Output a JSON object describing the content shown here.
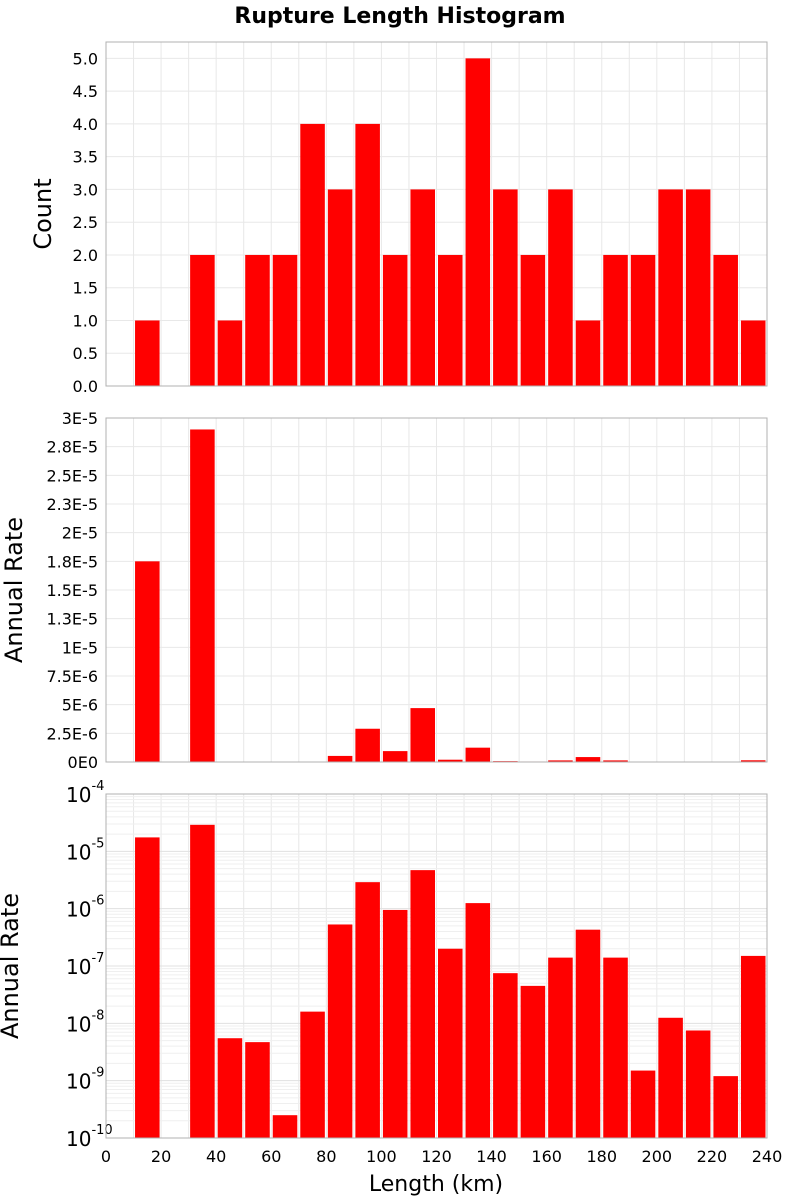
{
  "chart_data": {
    "type": "bar",
    "title": "Rupture Length Histogram",
    "xlabel": "Length (km)",
    "x_ticks": [
      "0",
      "20",
      "40",
      "60",
      "80",
      "100",
      "120",
      "140",
      "160",
      "180",
      "200",
      "220",
      "240"
    ],
    "xlim": [
      0,
      240
    ],
    "bin_width": 10,
    "bar_color": "#ff0000",
    "grid": true,
    "panels": [
      {
        "ylabel": "Count",
        "scale": "linear",
        "ylim": [
          0,
          5.25
        ],
        "y_ticks": [
          0,
          0.5,
          1,
          1.5,
          2,
          2.5,
          3,
          3.5,
          4,
          4.5,
          5
        ],
        "y_tick_labels": [
          "0.0",
          "0.5",
          "1.0",
          "1.5",
          "2.0",
          "2.5",
          "3.0",
          "3.5",
          "4.0",
          "4.5",
          "5.0"
        ],
        "x": [
          15,
          35,
          45,
          55,
          65,
          75,
          85,
          95,
          105,
          115,
          125,
          135,
          145,
          155,
          165,
          175,
          185,
          195,
          205,
          215,
          225,
          235
        ],
        "values": [
          1,
          2,
          1,
          2,
          2,
          4,
          3,
          4,
          2,
          3,
          2,
          5,
          3,
          2,
          3,
          1,
          2,
          2,
          3,
          3,
          2,
          1
        ]
      },
      {
        "ylabel": "Annual Rate",
        "scale": "linear",
        "ylim": [
          0,
          3e-05
        ],
        "y_ticks": [
          0,
          2.5e-06,
          5e-06,
          7.5e-06,
          1e-05,
          1.25e-05,
          1.5e-05,
          1.75e-05,
          2e-05,
          2.25e-05,
          2.5e-05,
          2.75e-05,
          3e-05
        ],
        "y_tick_labels": [
          "0E0",
          "2.5E-6",
          "5E-6",
          "7.5E-6",
          "1E-5",
          "1.3E-5",
          "1.5E-5",
          "1.8E-5",
          "2E-5",
          "2.3E-5",
          "2.5E-5",
          "2.8E-5",
          "3E-5"
        ],
        "x": [
          15,
          35,
          45,
          55,
          65,
          75,
          85,
          95,
          105,
          115,
          125,
          135,
          145,
          155,
          165,
          175,
          185,
          195,
          205,
          215,
          225,
          235
        ],
        "values": [
          1.75e-05,
          2.9e-05,
          5.5e-09,
          4.7e-09,
          2.5e-10,
          1.6e-08,
          5.3e-07,
          2.9e-06,
          9.5e-07,
          4.7e-06,
          2e-07,
          1.25e-06,
          7.5e-08,
          4.5e-08,
          1.4e-07,
          4.3e-07,
          1.4e-07,
          1.5e-09,
          1.25e-08,
          7.5e-09,
          1.2e-09,
          1.5e-07
        ]
      },
      {
        "ylabel": "Annual Rate",
        "scale": "log",
        "ylim": [
          1e-10,
          0.0001
        ],
        "y_tick_exponents": [
          -10,
          -9,
          -8,
          -7,
          -6,
          -5,
          -4
        ],
        "y_tick_base": "10",
        "y_tick_exp_labels": [
          "-10",
          "-9",
          "-8",
          "-7",
          "-6",
          "-5",
          "-4"
        ],
        "x": [
          15,
          35,
          45,
          55,
          65,
          75,
          85,
          95,
          105,
          115,
          125,
          135,
          145,
          155,
          165,
          175,
          185,
          195,
          205,
          215,
          225,
          235
        ],
        "values": [
          1.75e-05,
          2.9e-05,
          5.5e-09,
          4.7e-09,
          2.5e-10,
          1.6e-08,
          5.3e-07,
          2.9e-06,
          9.5e-07,
          4.7e-06,
          2e-07,
          1.25e-06,
          7.5e-08,
          4.5e-08,
          1.4e-07,
          4.3e-07,
          1.4e-07,
          1.5e-09,
          1.25e-08,
          7.5e-09,
          1.2e-09,
          1.5e-07
        ]
      }
    ]
  }
}
